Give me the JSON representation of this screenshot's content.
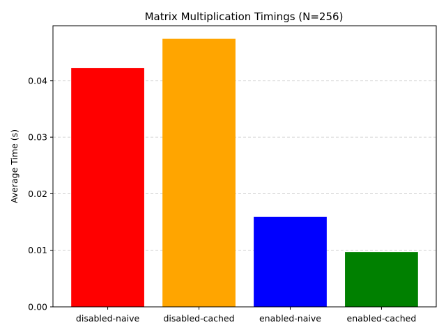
{
  "chart_data": {
    "type": "bar",
    "title": "Matrix Multiplication Timings (N=256)",
    "xlabel": "",
    "ylabel": "Average Time (s)",
    "categories": [
      "disabled-naive",
      "disabled-cached",
      "enabled-naive",
      "enabled-cached"
    ],
    "values": [
      0.0422,
      0.0474,
      0.0159,
      0.0097
    ],
    "colors": [
      "#ff0000",
      "#ffa500",
      "#0000ff",
      "#008000"
    ],
    "ylim": [
      0,
      0.0497
    ],
    "yticks": [
      0,
      0.01,
      0.02,
      0.03,
      0.04
    ],
    "ytick_labels": [
      "0.00",
      "0.01",
      "0.02",
      "0.03",
      "0.04"
    ],
    "grid": "y-dashed",
    "legend": "none"
  }
}
